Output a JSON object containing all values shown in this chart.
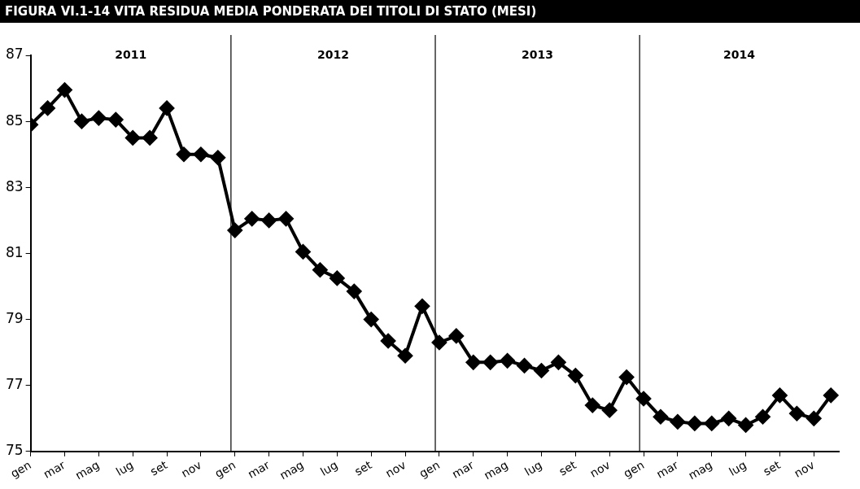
{
  "chart_data": {
    "type": "line",
    "title": "FIGURA VI.1-14 VITA RESIDUA MEDIA PONDERATA DEI TITOLI DI STATO (MESI)",
    "x": [
      "2011-01",
      "2011-02",
      "2011-03",
      "2011-04",
      "2011-05",
      "2011-06",
      "2011-07",
      "2011-08",
      "2011-09",
      "2011-10",
      "2011-11",
      "2011-12",
      "2012-01",
      "2012-02",
      "2012-03",
      "2012-04",
      "2012-05",
      "2012-06",
      "2012-07",
      "2012-08",
      "2012-09",
      "2012-10",
      "2012-11",
      "2012-12",
      "2013-01",
      "2013-02",
      "2013-03",
      "2013-04",
      "2013-05",
      "2013-06",
      "2013-07",
      "2013-08",
      "2013-09",
      "2013-10",
      "2013-11",
      "2013-12",
      "2014-01",
      "2014-02",
      "2014-03",
      "2014-04",
      "2014-05",
      "2014-06",
      "2014-07",
      "2014-08",
      "2014-09",
      "2014-10",
      "2014-11",
      "2014-12"
    ],
    "series": [
      {
        "color": "#000000",
        "values": [
          84.9,
          85.4,
          85.95,
          85.0,
          85.1,
          85.05,
          84.5,
          84.5,
          85.4,
          84.0,
          84.0,
          83.9,
          81.7,
          82.05,
          82.0,
          82.05,
          81.05,
          80.5,
          80.25,
          79.85,
          79.0,
          78.35,
          77.9,
          79.4,
          78.3,
          78.5,
          77.7,
          77.7,
          77.75,
          77.6,
          77.45,
          77.7,
          77.3,
          76.4,
          76.25,
          77.25,
          76.6,
          76.05,
          75.9,
          75.85,
          75.85,
          76.0,
          75.8,
          76.05,
          76.7,
          76.15,
          76.0,
          76.7
        ]
      }
    ],
    "xlim": [
      "2011-01",
      "2014-12-15"
    ],
    "xticks": [
      {
        "value": "2011-01",
        "label": "gen"
      },
      {
        "value": "2011-03",
        "label": "mar"
      },
      {
        "value": "2011-05",
        "label": "mag"
      },
      {
        "value": "2011-07",
        "label": "lug"
      },
      {
        "value": "2011-09",
        "label": "set"
      },
      {
        "value": "2011-11",
        "label": "nov"
      },
      {
        "value": "2012-01",
        "label": "gen"
      },
      {
        "value": "2012-03",
        "label": "mar"
      },
      {
        "value": "2012-05",
        "label": "mag"
      },
      {
        "value": "2012-07",
        "label": "lug"
      },
      {
        "value": "2012-09",
        "label": "set"
      },
      {
        "value": "2012-11",
        "label": "nov"
      },
      {
        "value": "2013-01",
        "label": "gen"
      },
      {
        "value": "2013-03",
        "label": "mar"
      },
      {
        "value": "2013-05",
        "label": "mag"
      },
      {
        "value": "2013-07",
        "label": "lug"
      },
      {
        "value": "2013-09",
        "label": "set"
      },
      {
        "value": "2013-11",
        "label": "nov"
      },
      {
        "value": "2014-01",
        "label": "gen"
      },
      {
        "value": "2014-03",
        "label": "mar"
      },
      {
        "value": "2014-05",
        "label": "mag"
      },
      {
        "value": "2014-07",
        "label": "lug"
      },
      {
        "value": "2014-09",
        "label": "set"
      },
      {
        "value": "2014-11",
        "label": "nov"
      }
    ],
    "ylim": [
      75,
      87
    ],
    "yticks": [
      75,
      77,
      79,
      81,
      83,
      85,
      87
    ],
    "ref_lines": [
      {
        "axis": "x",
        "value": "2011-12-24",
        "color": "#000000"
      },
      {
        "axis": "x",
        "value": "2012-12-24",
        "color": "#000000"
      },
      {
        "axis": "x",
        "value": "2013-12-24",
        "color": "#000000"
      }
    ],
    "annotations": [
      "2011",
      "2012",
      "2013",
      "2014"
    ],
    "grid": false,
    "legend": false,
    "marker": "diamond",
    "line_style": "solid"
  }
}
